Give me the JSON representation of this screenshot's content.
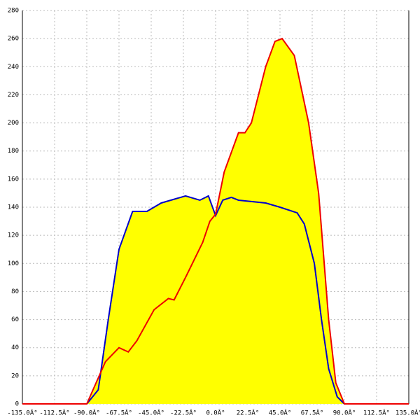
{
  "chart_data": {
    "type": "area-line",
    "xlim": [
      -135,
      135
    ],
    "ylim": [
      0,
      280
    ],
    "xticks": [
      {
        "value": -135,
        "label": "-135.0Â°"
      },
      {
        "value": -112.5,
        "label": "-112.5Â°"
      },
      {
        "value": -90,
        "label": "-90.0Â°"
      },
      {
        "value": -67.5,
        "label": "-67.5Â°"
      },
      {
        "value": -45,
        "label": "-45.0Â°"
      },
      {
        "value": -22.5,
        "label": "-22.5Â°"
      },
      {
        "value": 0,
        "label": "0.0Â°"
      },
      {
        "value": 22.5,
        "label": "22.5Â°"
      },
      {
        "value": 45,
        "label": "45.0Â°"
      },
      {
        "value": 67.5,
        "label": "67.5Â°"
      },
      {
        "value": 90,
        "label": "90.0Â°"
      },
      {
        "value": 112.5,
        "label": "112.5Â°"
      },
      {
        "value": 135,
        "label": "135.0Â°"
      }
    ],
    "yticks": [
      0,
      20,
      40,
      60,
      80,
      100,
      120,
      140,
      160,
      180,
      200,
      220,
      240,
      260,
      280
    ],
    "grid": true,
    "fill_color": "#ffff00",
    "series": [
      {
        "color": "#0000cc",
        "x": [
          -90,
          -82,
          -75,
          -67.5,
          -58,
          -48,
          -38,
          -21,
          -11,
          -5,
          0,
          5,
          11,
          16,
          35,
          45,
          57,
          62,
          69,
          74,
          79,
          85,
          90
        ],
        "values": [
          0,
          10,
          60,
          110,
          137,
          137,
          143,
          148,
          145,
          148,
          134,
          145,
          147,
          145,
          143,
          140,
          136,
          128,
          100,
          60,
          25,
          5,
          0
        ]
      },
      {
        "color": "#ee0000",
        "x": [
          -135,
          -90,
          -77,
          -67.5,
          -61,
          -55,
          -43,
          -33,
          -29,
          -21,
          -9,
          -4,
          0,
          6,
          16,
          20.5,
          25,
          35,
          41.5,
          46.5,
          55,
          65,
          72,
          79,
          84,
          90,
          135
        ],
        "values": [
          0,
          0,
          30,
          40,
          37,
          45,
          67,
          75,
          74,
          90,
          115,
          130,
          135,
          165,
          193,
          193,
          200,
          240,
          258,
          260,
          248,
          200,
          150,
          60,
          15,
          0,
          0
        ]
      }
    ]
  }
}
